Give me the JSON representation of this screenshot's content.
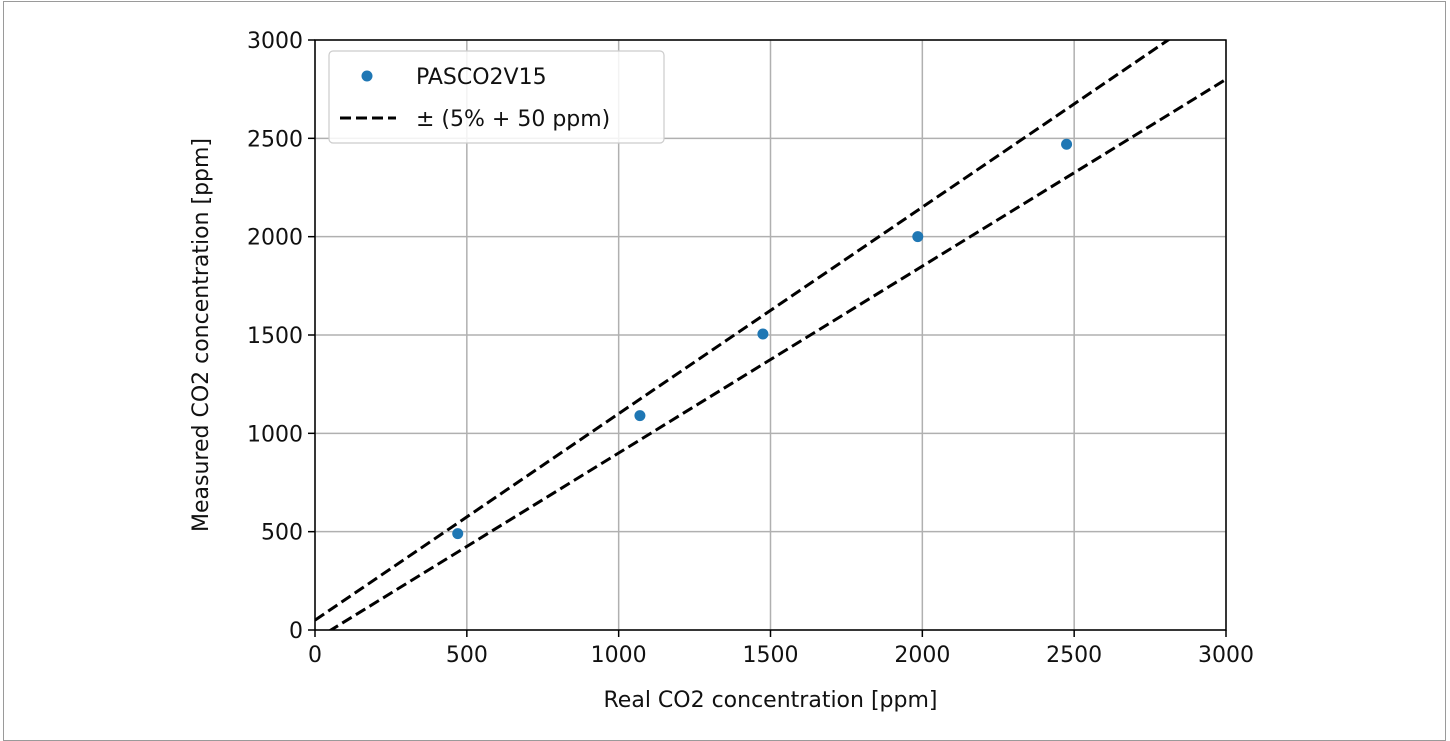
{
  "chart_data": {
    "type": "scatter",
    "title": "",
    "xlabel": "Real CO2 concentration [ppm]",
    "ylabel": "Measured CO2 concentration [ppm]",
    "xlim": [
      0,
      3000
    ],
    "ylim": [
      0,
      3000
    ],
    "xticks": [
      "0",
      "500",
      "1000",
      "1500",
      "2000",
      "2500",
      "3000"
    ],
    "yticks": [
      "0",
      "500",
      "1000",
      "1500",
      "2000",
      "2500",
      "3000"
    ],
    "grid": true,
    "legend_position": "top-left",
    "series": [
      {
        "name": "PASCO2V15",
        "kind": "scatter",
        "color": "#1f77b4",
        "x": [
          470,
          1070,
          1475,
          1985,
          2475
        ],
        "y": [
          490,
          1090,
          1505,
          2000,
          2470
        ]
      },
      {
        "name": "± (5% + 50 ppm)",
        "kind": "dashed-line",
        "color": "#000000",
        "bounds": [
          {
            "slope": 1.05,
            "intercept": 50
          },
          {
            "slope": 0.95,
            "intercept": -50
          }
        ]
      }
    ]
  }
}
